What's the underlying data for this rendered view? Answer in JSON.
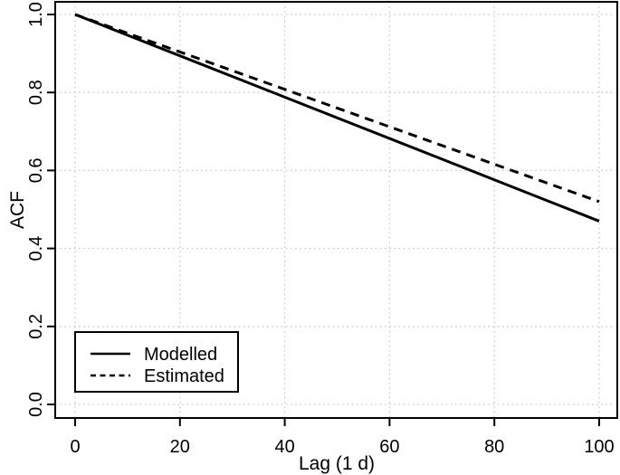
{
  "figure": {
    "background": "#ffffff",
    "foreground": "#000000",
    "gridline_color": "#c9c9c9",
    "gridline_style": "dotted"
  },
  "chart_data": {
    "type": "line",
    "title": "",
    "xlabel": "Lag (1 d)",
    "ylabel": "ACF",
    "xlim": [
      0,
      100
    ],
    "ylim": [
      0.0,
      1.0
    ],
    "x_ticks": [
      0,
      20,
      40,
      60,
      80,
      100
    ],
    "x_tick_labels": [
      "0",
      "20",
      "40",
      "60",
      "80",
      "100"
    ],
    "y_ticks": [
      0.0,
      0.2,
      0.4,
      0.6,
      0.8,
      1.0
    ],
    "y_tick_labels": [
      "0.0",
      "0.2",
      "0.4",
      "0.6",
      "0.8",
      "1.0"
    ],
    "grid": "dotted gridlines at every tick, both axes",
    "legend_position": "bottom-left",
    "x": [
      0,
      10,
      20,
      30,
      40,
      50,
      60,
      70,
      80,
      90,
      100
    ],
    "series": [
      {
        "name": "Modelled",
        "style": "solid",
        "color": "#000000",
        "values": [
          1.0,
          0.947,
          0.894,
          0.841,
          0.788,
          0.735,
          0.682,
          0.629,
          0.576,
          0.523,
          0.47
        ]
      },
      {
        "name": "Estimated",
        "style": "dashed",
        "color": "#000000",
        "values": [
          1.0,
          0.952,
          0.904,
          0.856,
          0.808,
          0.76,
          0.712,
          0.664,
          0.616,
          0.568,
          0.52
        ]
      }
    ]
  }
}
